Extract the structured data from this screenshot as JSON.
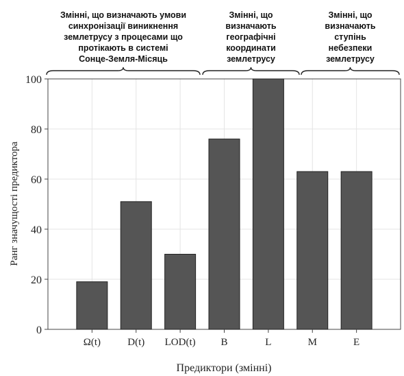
{
  "chart_data": {
    "type": "bar",
    "categories": [
      "Ω(t)",
      "D(t)",
      "LOD(t)",
      "B",
      "L",
      "M",
      "E"
    ],
    "values": [
      19,
      51,
      30,
      76,
      100,
      63,
      63
    ],
    "xlabel": "Предиктори (змінні)",
    "ylabel": "Ранг значущості предиктора",
    "ylim": [
      0,
      100
    ],
    "yticks": [
      0,
      20,
      40,
      60,
      80,
      100
    ],
    "grid": true,
    "bar_color": "#555555",
    "groups": [
      {
        "label": "Змінні, що визначають умови синхронізації виникнення землетрусу з процесами що протікають в системі Сонце-Земля-Місяць",
        "lines": [
          "Змінні, що визначають умови",
          "синхронізації виникнення",
          "землетрусу з процесами що",
          "протікають в системі",
          "Сонце-Земля-Місяць"
        ],
        "categories": [
          "Ω(t)",
          "D(t)",
          "LOD(t)"
        ]
      },
      {
        "label": "Змінні, що визначають географічні координати землетрусу",
        "lines": [
          "Змінні, що",
          "визначають",
          "географічні",
          "координати",
          "землетрусу"
        ],
        "categories": [
          "B",
          "L"
        ]
      },
      {
        "label": "Змінні, що визначають ступінь небезпеки землетрусу",
        "lines": [
          "Змінні, що",
          "визначають",
          "ступінь",
          "небезпеки",
          "землетрусу"
        ],
        "categories": [
          "M",
          "E"
        ]
      }
    ]
  }
}
